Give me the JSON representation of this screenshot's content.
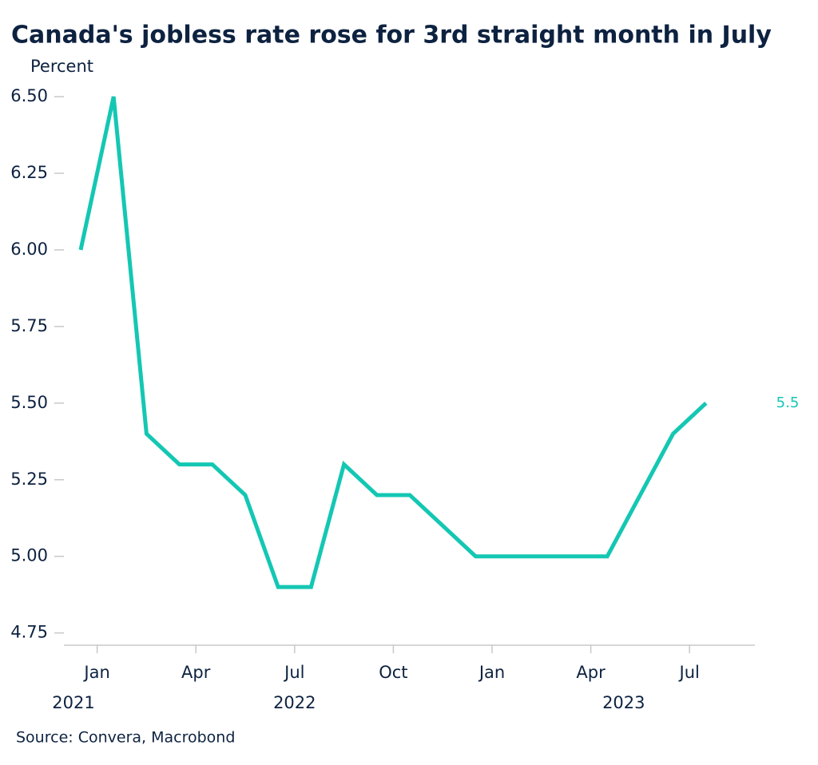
{
  "chart_data": {
    "type": "line",
    "title": "Canada's jobless rate rose for 3rd straight month in July",
    "y_label": "Percent",
    "source": "Source: Convera, Macrobond",
    "x": [
      "2021-12",
      "2022-01",
      "2022-02",
      "2022-03",
      "2022-04",
      "2022-05",
      "2022-06",
      "2022-07",
      "2022-08",
      "2022-09",
      "2022-10",
      "2022-11",
      "2022-12",
      "2023-01",
      "2023-02",
      "2023-03",
      "2023-04",
      "2023-05",
      "2023-06",
      "2023-07"
    ],
    "series": [
      {
        "color": "#14c7b3",
        "values": [
          6.0,
          6.5,
          5.4,
          5.3,
          5.3,
          5.2,
          4.9,
          4.9,
          5.3,
          5.2,
          5.2,
          5.1,
          5.0,
          5.0,
          5.0,
          5.0,
          5.0,
          5.2,
          5.4,
          5.5
        ],
        "value_labels": [
          null,
          null,
          null,
          null,
          null,
          null,
          null,
          null,
          null,
          null,
          null,
          null,
          null,
          null,
          null,
          null,
          null,
          null,
          null,
          "5.5"
        ]
      }
    ],
    "ylim": [
      4.71,
      6.56
    ],
    "yticks": [
      {
        "value": 4.75,
        "label": "4.75"
      },
      {
        "value": 5.0,
        "label": "5.00"
      },
      {
        "value": 5.25,
        "label": "5.25"
      },
      {
        "value": 5.5,
        "label": "5.50"
      },
      {
        "value": 5.75,
        "label": "5.75"
      },
      {
        "value": 6.0,
        "label": "6.00"
      },
      {
        "value": 6.25,
        "label": "6.25"
      },
      {
        "value": 6.5,
        "label": "6.50"
      }
    ],
    "xticks": [
      {
        "value": "2022-01",
        "label": "Jan"
      },
      {
        "value": "2022-04",
        "label": "Apr"
      },
      {
        "value": "2022-07",
        "label": "Jul"
      },
      {
        "value": "2022-10",
        "label": "Oct"
      },
      {
        "value": "2023-01",
        "label": "Jan"
      },
      {
        "value": "2023-04",
        "label": "Apr"
      },
      {
        "value": "2023-07",
        "label": "Jul"
      }
    ],
    "year_labels": [
      {
        "value": "2021-12",
        "label": "2021"
      },
      {
        "value": "2022-07",
        "label": "2022"
      },
      {
        "value": "2023-05",
        "label": "2023"
      }
    ]
  }
}
